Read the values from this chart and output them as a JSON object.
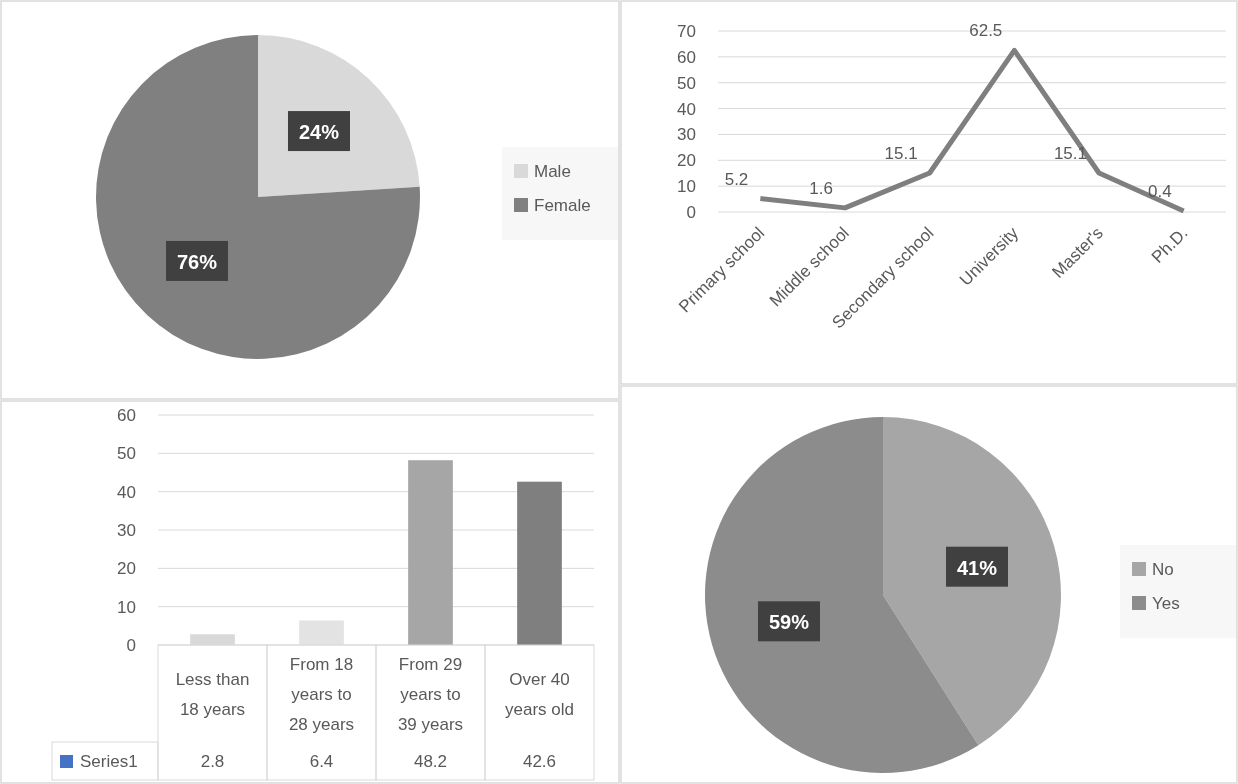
{
  "chart_data": [
    {
      "type": "pie",
      "categories": [
        "Male",
        "Female"
      ],
      "values": [
        24,
        76
      ],
      "colors": [
        "#d9d9d9",
        "#808080"
      ],
      "value_labels": [
        "24%",
        "76%"
      ],
      "legend": "right"
    },
    {
      "type": "line",
      "categories": [
        "Primary school",
        "Middle school",
        "Secondary school",
        "University",
        "Master's",
        "Ph.D."
      ],
      "series": [
        {
          "color": "#7f7f7f",
          "values": [
            5.2,
            1.6,
            15.1,
            62.5,
            15.1,
            0.4
          ]
        }
      ],
      "ylim": [
        0,
        70
      ],
      "yticks": [
        0,
        10,
        20,
        30,
        40,
        50,
        60,
        70
      ],
      "grid": "y",
      "data_labels": true
    },
    {
      "type": "bar",
      "categories": [
        "Less than 18 years",
        "From 18 years to 28 years",
        "From 29 years to 39 years",
        "Over 40 years old"
      ],
      "series": [
        {
          "name": "Series1",
          "color": "#4472c4",
          "colors": [
            "#d9d9d9",
            "#e3e3e3",
            "#a6a6a6",
            "#7f7f7f"
          ],
          "values": [
            2.8,
            6.4,
            48.2,
            42.6
          ]
        }
      ],
      "ylim": [
        0,
        60
      ],
      "yticks": [
        0,
        10,
        20,
        30,
        40,
        50,
        60
      ],
      "grid": "y",
      "data_labels": true,
      "legend": "bottom"
    },
    {
      "type": "pie",
      "categories": [
        "No",
        "Yes"
      ],
      "values": [
        41,
        59
      ],
      "colors": [
        "#a6a6a6",
        "#8c8c8c"
      ],
      "value_labels": [
        "41%",
        "59%"
      ],
      "legend": "right"
    }
  ]
}
